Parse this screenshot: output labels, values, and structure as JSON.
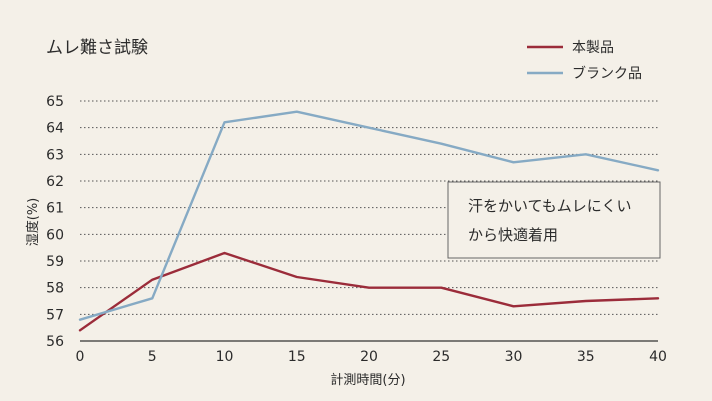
{
  "chart_data": {
    "type": "line",
    "title": "ムレ難さ試験",
    "xlabel": "計測時間(分)",
    "ylabel": "湿度(%)",
    "x": [
      0,
      5,
      10,
      15,
      20,
      25,
      30,
      35,
      40
    ],
    "xlim": [
      0,
      40
    ],
    "ylim": [
      56,
      65
    ],
    "x_ticks": [
      "0",
      "5",
      "10",
      "15",
      "20",
      "25",
      "30",
      "35",
      "40"
    ],
    "y_ticks": [
      "56",
      "57",
      "58",
      "59",
      "60",
      "61",
      "62",
      "63",
      "64",
      "65"
    ],
    "grid": "horizontal dotted",
    "legend_position": "top-right",
    "series": [
      {
        "name": "本製品",
        "color": "#9b2c3a",
        "values": [
          56.4,
          58.3,
          59.3,
          58.4,
          58.0,
          58.0,
          57.3,
          57.5,
          57.6
        ]
      },
      {
        "name": "ブランク品",
        "color": "#86aac4",
        "values": [
          56.8,
          57.6,
          64.2,
          64.6,
          64.0,
          63.4,
          62.7,
          63.0,
          62.4
        ]
      }
    ],
    "annotation": {
      "line1": "汗をかいてもムレにくい",
      "line2": "から快適着用"
    }
  }
}
